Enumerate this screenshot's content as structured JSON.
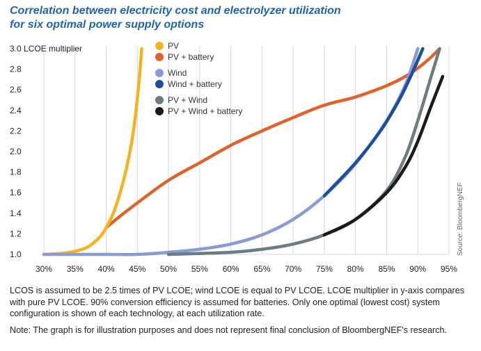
{
  "title_line1": "Correlation between electricity cost and electrolyzer utilization",
  "title_line2": "for six optimal power supply options",
  "source": "Source: BloombergNEF",
  "note1": "LCOS is assumed to be 2.5 times of PV LCOE; wind LCOE is equal to PV LCOE. LCOE multiplier in y-axis compares with pure PV LCOE. 90% conversion efficiency is assumed for batteries. Only one optimal (lowest cost) system configuration is shown of each technology, at each utilization rate.",
  "note2": "Note: The graph is for illustration purposes and does not represent final conclusion of BloombergNEF's research.",
  "chart_data": {
    "type": "line",
    "title": "Correlation between electricity cost and electrolyzer utilization for six optimal power supply options",
    "ylabel": "LCOE multiplier",
    "xlabel": "",
    "x_tick_labels": [
      "30%",
      "35%",
      "40%",
      "45%",
      "50%",
      "55%",
      "60%",
      "65%",
      "70%",
      "75%",
      "80%",
      "85%",
      "90%",
      "95%"
    ],
    "y_tick_labels": [
      "1.0",
      "1.2",
      "1.4",
      "1.6",
      "1.8",
      "2.0",
      "2.2",
      "2.4",
      "2.6",
      "2.8",
      "3.0 LCOE multiplier"
    ],
    "xlim": [
      30,
      95
    ],
    "ylim": [
      1.0,
      3.0
    ],
    "grid": "vertical",
    "legend": "top-center",
    "series": [
      {
        "name": "PV",
        "color": "#f5b21f",
        "points": [
          [
            30,
            1.0
          ],
          [
            33,
            1.01
          ],
          [
            35,
            1.03
          ],
          [
            37,
            1.07
          ],
          [
            39,
            1.17
          ],
          [
            40,
            1.26
          ],
          [
            41,
            1.38
          ],
          [
            42,
            1.55
          ],
          [
            43,
            1.77
          ],
          [
            44,
            2.06
          ],
          [
            44.7,
            2.35
          ],
          [
            45.3,
            2.7
          ],
          [
            45.7,
            3.0
          ]
        ]
      },
      {
        "name": "PV + battery",
        "color": "#e0622a",
        "points": [
          [
            40,
            1.26
          ],
          [
            42,
            1.36
          ],
          [
            45,
            1.5
          ],
          [
            50,
            1.72
          ],
          [
            55,
            1.89
          ],
          [
            60,
            2.06
          ],
          [
            65,
            2.2
          ],
          [
            70,
            2.33
          ],
          [
            75,
            2.45
          ],
          [
            80,
            2.53
          ],
          [
            85,
            2.64
          ],
          [
            88,
            2.73
          ],
          [
            90,
            2.81
          ],
          [
            92,
            2.91
          ],
          [
            93.5,
            3.0
          ]
        ]
      },
      {
        "name": "Wind",
        "color": "#8a9bd3",
        "points": [
          [
            30,
            1.0
          ],
          [
            40,
            1.0
          ],
          [
            45,
            1.0
          ],
          [
            50,
            1.02
          ],
          [
            55,
            1.05
          ],
          [
            60,
            1.1
          ],
          [
            65,
            1.19
          ],
          [
            70,
            1.34
          ],
          [
            75,
            1.57
          ],
          [
            80,
            1.88
          ],
          [
            85,
            2.3
          ],
          [
            88,
            2.65
          ],
          [
            90,
            3.0
          ]
        ]
      },
      {
        "name": "Wind + battery",
        "color": "#1a4f9c",
        "points": [
          [
            75,
            1.57
          ],
          [
            80,
            1.89
          ],
          [
            84,
            2.2
          ],
          [
            87,
            2.5
          ],
          [
            89,
            2.75
          ],
          [
            90.8,
            3.0
          ]
        ]
      },
      {
        "name": "PV + Wind",
        "color": "#6b7c85",
        "points": [
          [
            50,
            1.0
          ],
          [
            60,
            1.02
          ],
          [
            65,
            1.05
          ],
          [
            70,
            1.1
          ],
          [
            75,
            1.19
          ],
          [
            80,
            1.34
          ],
          [
            85,
            1.62
          ],
          [
            88,
            1.95
          ],
          [
            90,
            2.3
          ],
          [
            92,
            2.7
          ],
          [
            93.5,
            3.0
          ]
        ]
      },
      {
        "name": "PV + Wind + battery",
        "color": "#1a1a1a",
        "points": [
          [
            75,
            1.19
          ],
          [
            80,
            1.34
          ],
          [
            85,
            1.6
          ],
          [
            88,
            1.85
          ],
          [
            90,
            2.1
          ],
          [
            92,
            2.42
          ],
          [
            94,
            2.73
          ]
        ]
      }
    ]
  }
}
